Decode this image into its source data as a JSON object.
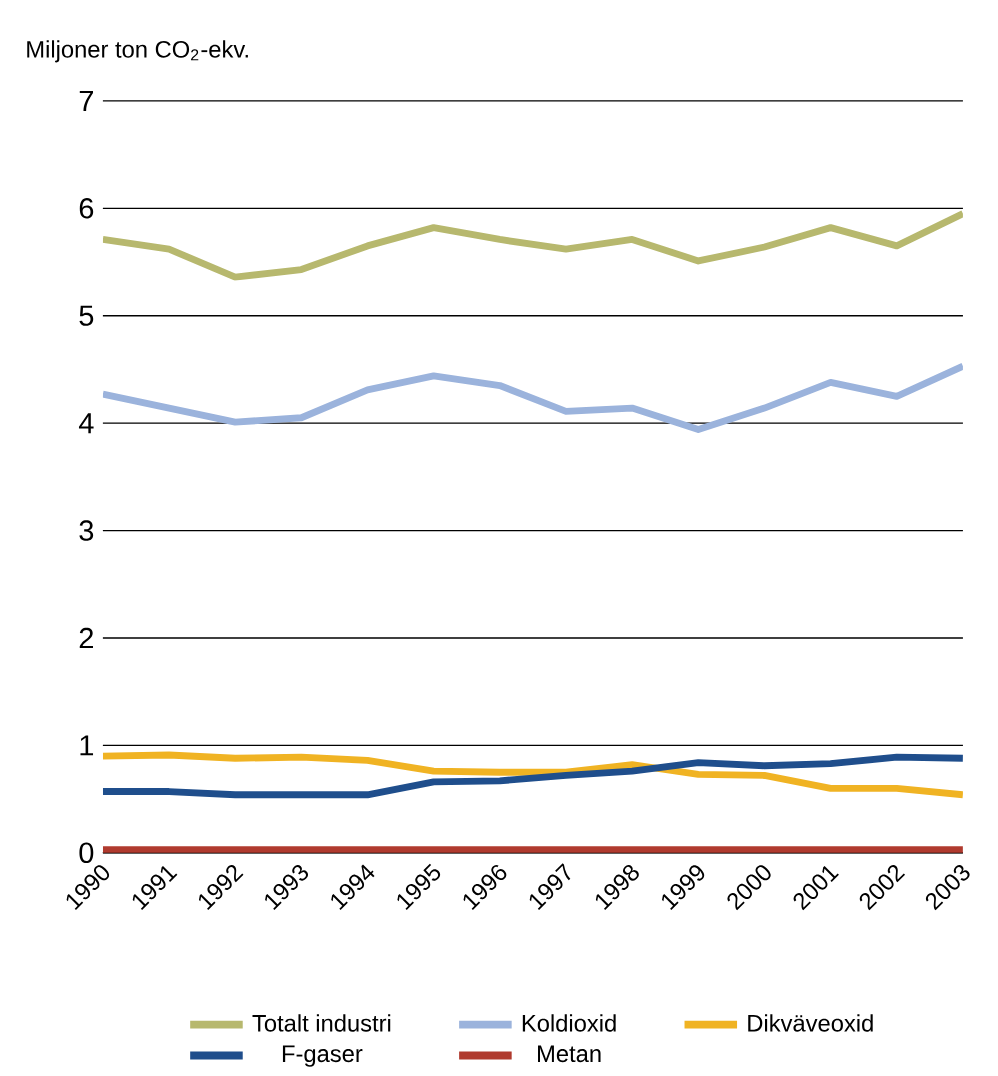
{
  "chart_data": {
    "type": "line",
    "ylabel": "Miljoner ton CO$_{2}$-ekv.",
    "categories": [
      "1990",
      "1991",
      "1992",
      "1993",
      "1994",
      "1995",
      "1996",
      "1997",
      "1998",
      "1999",
      "2000",
      "2001",
      "2002",
      "2003"
    ],
    "ylim": [
      0,
      7
    ],
    "yticks": [
      0,
      1,
      2,
      3,
      4,
      5,
      6,
      7
    ],
    "grid": "y",
    "legend": "bottom",
    "line_style": "solid",
    "marker": "none",
    "series": [
      {
        "name": "Totalt industri",
        "color": "#b7b86e",
        "values": [
          5.71,
          5.62,
          5.36,
          5.43,
          5.65,
          5.82,
          5.71,
          5.62,
          5.71,
          5.51,
          5.64,
          5.82,
          5.65,
          5.95
        ]
      },
      {
        "name": "Koldioxid",
        "color": "#9bb3dc",
        "values": [
          4.27,
          4.14,
          4.01,
          4.05,
          4.31,
          4.44,
          4.35,
          4.11,
          4.14,
          3.94,
          4.14,
          4.38,
          4.25,
          4.53
        ]
      },
      {
        "name": "Dikväveoxid",
        "color": "#f0b323",
        "values": [
          0.9,
          0.91,
          0.88,
          0.89,
          0.86,
          0.76,
          0.75,
          0.75,
          0.82,
          0.73,
          0.72,
          0.6,
          0.6,
          0.54
        ]
      },
      {
        "name": "F-gaser",
        "color": "#1f4e8c",
        "values": [
          0.57,
          0.57,
          0.54,
          0.54,
          0.54,
          0.66,
          0.67,
          0.72,
          0.76,
          0.84,
          0.81,
          0.83,
          0.89,
          0.88
        ]
      },
      {
        "name": "Metan",
        "color": "#b03a2e",
        "values": [
          0.03,
          0.03,
          0.03,
          0.03,
          0.03,
          0.03,
          0.03,
          0.03,
          0.03,
          0.03,
          0.03,
          0.03,
          0.03,
          0.03
        ]
      }
    ]
  }
}
